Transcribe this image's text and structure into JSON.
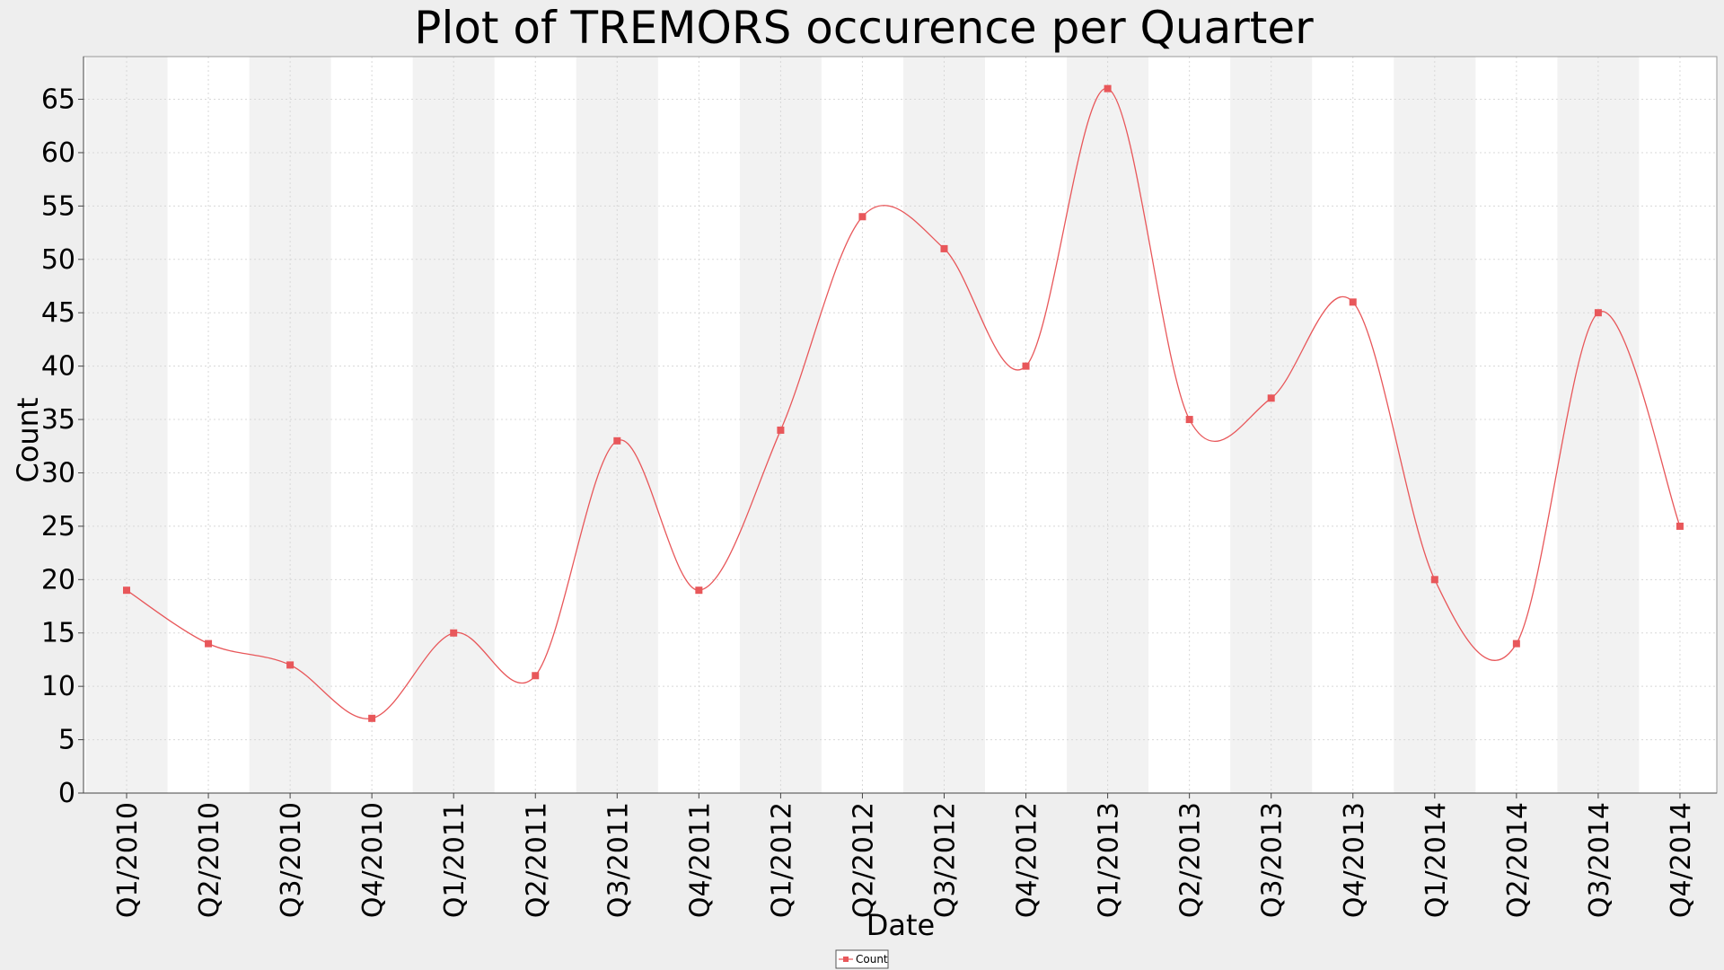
{
  "chart_data": {
    "type": "line",
    "title": "Plot of TREMORS occurence per Quarter",
    "xlabel": "Date",
    "ylabel": "Count",
    "categories": [
      "Q1/2010",
      "Q2/2010",
      "Q3/2010",
      "Q4/2010",
      "Q1/2011",
      "Q2/2011",
      "Q3/2011",
      "Q4/2011",
      "Q1/2012",
      "Q2/2012",
      "Q3/2012",
      "Q4/2012",
      "Q1/2013",
      "Q2/2013",
      "Q3/2013",
      "Q4/2013",
      "Q1/2014",
      "Q2/2014",
      "Q3/2014",
      "Q4/2014"
    ],
    "series": [
      {
        "name": "Count",
        "values": [
          19,
          14,
          12,
          7,
          15,
          11,
          33,
          19,
          34,
          54,
          51,
          40,
          66,
          35,
          37,
          46,
          20,
          14,
          45,
          25
        ],
        "color": "#e8575a"
      }
    ],
    "ylim": [
      0,
      69
    ],
    "yticks": [
      0,
      5,
      10,
      15,
      20,
      25,
      30,
      35,
      40,
      45,
      50,
      55,
      60,
      65
    ],
    "smooth": true,
    "grid": true,
    "alternating_bands": true,
    "legend_position": "bottom-center"
  },
  "colors": {
    "page_background": "#eeeeee",
    "plot_background": "#ffffff",
    "band_color": "#f2f2f2",
    "grid_color": "#d8d8d8",
    "series_color": "#e8575a"
  }
}
